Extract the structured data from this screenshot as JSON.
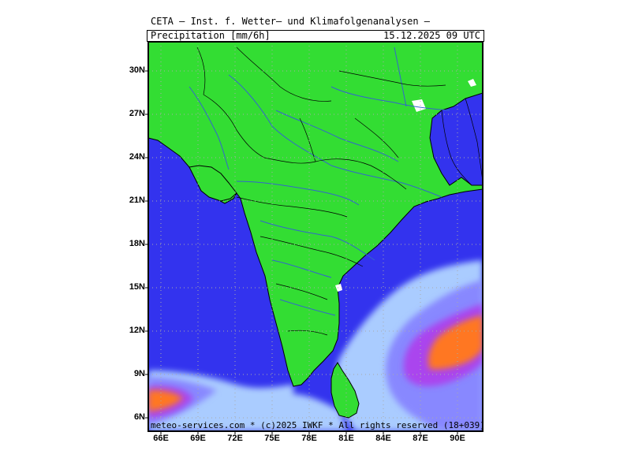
{
  "header": {
    "title": "CETA — Inst. f. Wetter— und Klimafolgenanalysen —",
    "parameter": "Precipitation [mm/6h]",
    "valid_time": "15.12.2025 09 UTC"
  },
  "footer": {
    "credit": "meteo-services.com * (c)2025 IWKF * All rights reserved (18+039)"
  },
  "axes": {
    "lat_labels": [
      "30N",
      "27N",
      "24N",
      "21N",
      "18N",
      "15N",
      "12N",
      "9N",
      "6N"
    ],
    "lon_labels": [
      "66E",
      "69E",
      "72E",
      "75E",
      "78E",
      "81E",
      "84E",
      "87E",
      "90E"
    ]
  },
  "colors": {
    "land": "#33dd33",
    "sea": "#3333ee",
    "precip_low": "#aaccff",
    "precip_mid": "#8888ff",
    "precip_high": "#aa44ee",
    "precip_heavy": "#ee2288",
    "precip_extreme": "#ff7722"
  }
}
